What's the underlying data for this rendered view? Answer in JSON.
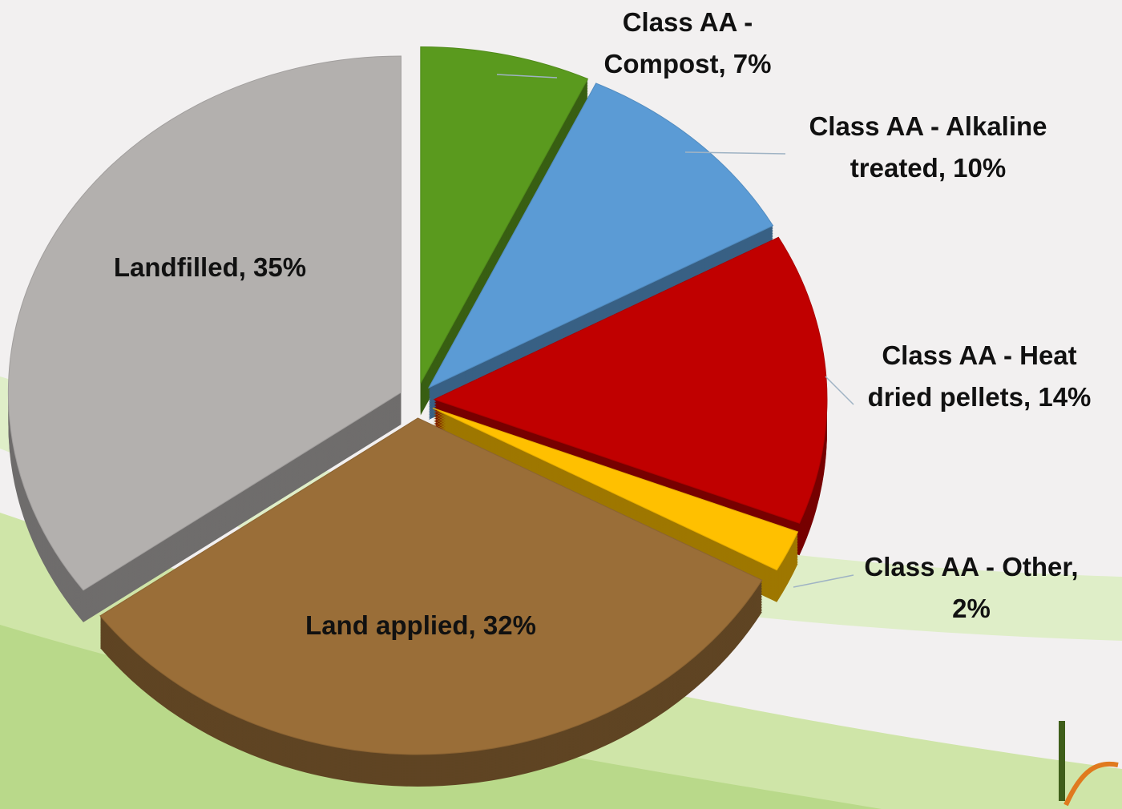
{
  "chart_data": {
    "type": "pie",
    "values": [
      7,
      10,
      14,
      2,
      32,
      35
    ],
    "value_labels": [
      "Class AA - Compost, 7%",
      "Class AA - Alkaline treated, 10%",
      "Class AA - Heat dried pellets, 14%",
      "Class AA - Other, 2%",
      "Land applied, 32%",
      "Landfilled, 35%"
    ],
    "colors": [
      "#5a9a1e",
      "#5b9bd5",
      "#c00000",
      "#ffc000",
      "#9a6e38",
      "#b3b0ae"
    ]
  }
}
